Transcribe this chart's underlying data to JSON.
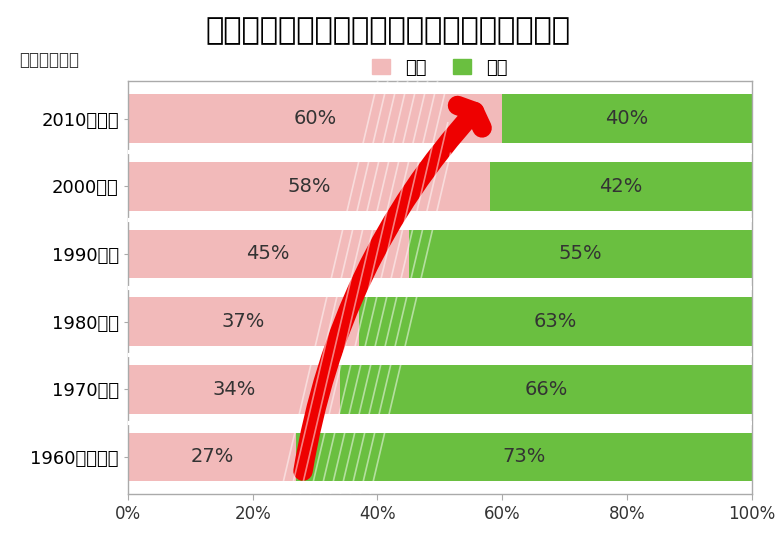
{
  "title": "＜建設年次別にみた事業所の敏地保有形態＞",
  "subtitle": "（建設年次）",
  "categories": [
    "2010年以降",
    "2000年代",
    "1990年代",
    "1980年代",
    "1970年代",
    "1960年代以前"
  ],
  "rental_values": [
    60,
    58,
    45,
    37,
    34,
    27
  ],
  "owned_values": [
    40,
    42,
    55,
    63,
    66,
    73
  ],
  "rental_color": "#f2baba",
  "owned_color": "#6abf40",
  "rental_label": "賞貸",
  "owned_label": "所有",
  "xlabel_ticks": [
    "0%",
    "20%",
    "40%",
    "60%",
    "80%",
    "100%"
  ],
  "xlabel_values": [
    0,
    20,
    40,
    60,
    80,
    100
  ],
  "background_color": "#ffffff",
  "title_fontsize": 22,
  "label_fontsize": 13,
  "tick_fontsize": 12,
  "legend_fontsize": 13,
  "bar_text_fontsize": 14,
  "arrow_color": "#ee0000",
  "border_color": "#aaaaaa",
  "white_gap_color": "#ffffff"
}
